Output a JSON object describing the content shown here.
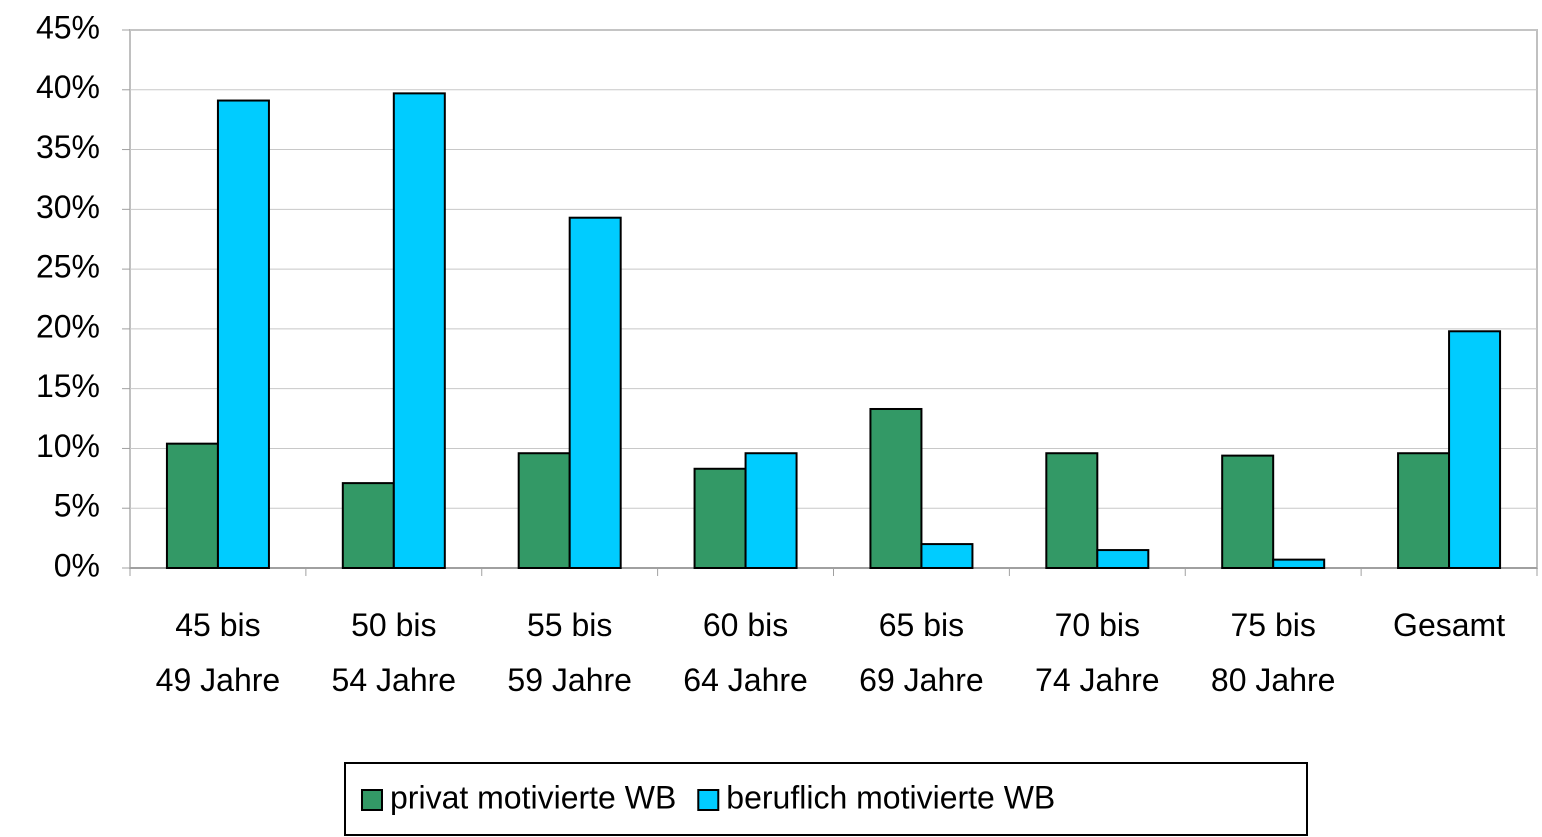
{
  "chart_data": {
    "type": "bar",
    "categories": [
      "45 bis\n49 Jahre",
      "50 bis\n54 Jahre",
      "55 bis\n59 Jahre",
      "60 bis\n64 Jahre",
      "65 bis\n69 Jahre",
      "70 bis\n74 Jahre",
      "75 bis\n80 Jahre",
      "Gesamt"
    ],
    "series": [
      {
        "name": "privat motivierte WB",
        "color": "#339966",
        "values": [
          10.4,
          7.1,
          9.6,
          8.3,
          13.3,
          9.6,
          9.4,
          9.6
        ]
      },
      {
        "name": "beruflich motivierte WB",
        "color": "#00ccff",
        "values": [
          39.1,
          39.7,
          29.3,
          9.6,
          2.0,
          1.5,
          0.7,
          19.8
        ]
      }
    ],
    "ylim": [
      0,
      45
    ],
    "yticks": [
      {
        "value": 0,
        "label": "0%"
      },
      {
        "value": 5,
        "label": "5%"
      },
      {
        "value": 10,
        "label": "10%"
      },
      {
        "value": 15,
        "label": "15%"
      },
      {
        "value": 20,
        "label": "20%"
      },
      {
        "value": 25,
        "label": "25%"
      },
      {
        "value": 30,
        "label": "30%"
      },
      {
        "value": 35,
        "label": "35%"
      },
      {
        "value": 40,
        "label": "40%"
      },
      {
        "value": 45,
        "label": "45%"
      }
    ],
    "grid": true,
    "legend": "bottom"
  }
}
